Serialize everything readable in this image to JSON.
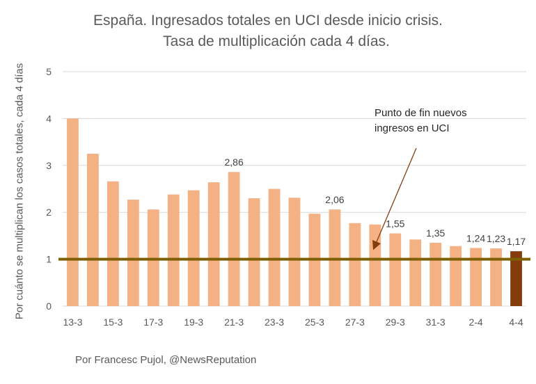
{
  "title_line1": "España. Ingresados totales en UCI desde inicio crisis.",
  "title_line2": "Tasa de multiplicación cada 4 días.",
  "credit": "Por Francesc Pujol, @NewsReputation",
  "annotation_line1": "Punto de fin nuevos",
  "annotation_line2": "ingresos en UCI",
  "colors": {
    "bar": "#F4B183",
    "last_bar": "#843C0C",
    "reference_line": "#7F6000",
    "grid": "#D9D9D9",
    "arrow": "#843C0C"
  },
  "chart_data": {
    "type": "bar",
    "title": "España. Ingresados totales en UCI desde inicio crisis. Tasa de multiplicación cada 4 días.",
    "xlabel": "",
    "ylabel": "Por cuánto se multiplican los casos totales, cada 4 días",
    "ylim": [
      0,
      5
    ],
    "yticks": [
      "0",
      "1",
      "2",
      "3",
      "4",
      "5"
    ],
    "categories": [
      "13-3",
      "14-3",
      "15-3",
      "16-3",
      "17-3",
      "18-3",
      "19-3",
      "20-3",
      "21-3",
      "22-3",
      "23-3",
      "24-3",
      "25-3",
      "26-3",
      "27-3",
      "28-3",
      "29-3",
      "30-3",
      "31-3",
      "1-4",
      "2-4",
      "3-4",
      "4-4"
    ],
    "xtick_labels": [
      "13-3",
      "15-3",
      "17-3",
      "19-3",
      "21-3",
      "23-3",
      "25-3",
      "27-3",
      "29-3",
      "31-3",
      "2-4",
      "4-4"
    ],
    "values": [
      4.0,
      3.25,
      2.66,
      2.27,
      2.06,
      2.38,
      2.47,
      2.64,
      2.86,
      2.3,
      2.5,
      2.31,
      1.97,
      2.06,
      1.77,
      1.74,
      1.55,
      1.42,
      1.35,
      1.28,
      1.24,
      1.23,
      1.17
    ],
    "data_labels": [
      {
        "category": "21-3",
        "text": "2,86"
      },
      {
        "category": "26-3",
        "text": "2,06"
      },
      {
        "category": "29-3",
        "text": "1,55"
      },
      {
        "category": "31-3",
        "text": "1,35"
      },
      {
        "category": "2-4",
        "text": "1,24"
      },
      {
        "category": "3-4",
        "text": "1,23"
      },
      {
        "category": "4-4",
        "text": "1,17"
      }
    ],
    "reference_line": 1,
    "grid": true,
    "legend": "none"
  }
}
